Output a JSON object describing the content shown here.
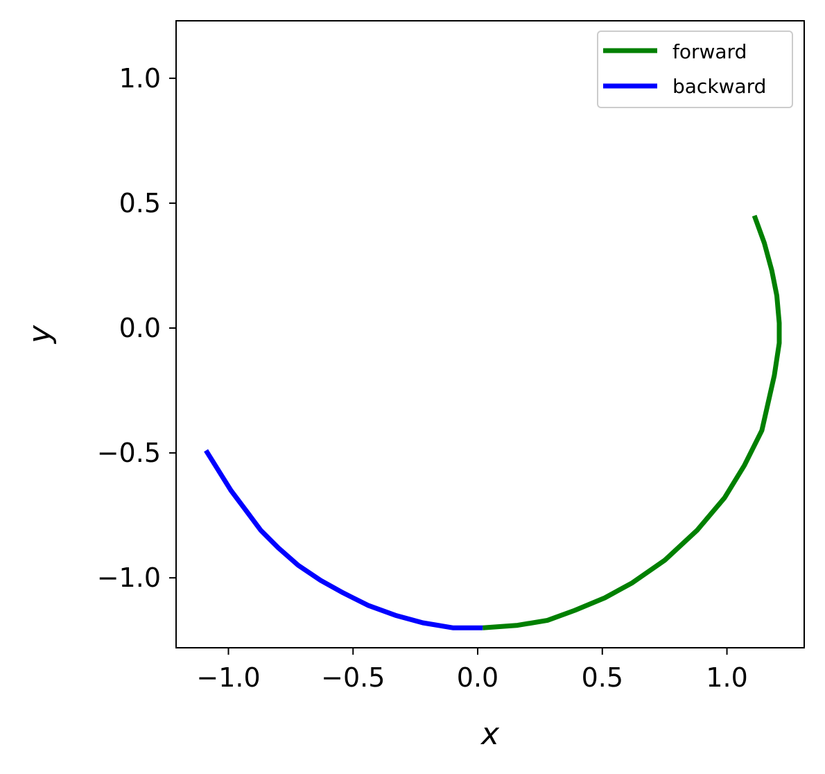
{
  "chart_data": {
    "type": "line",
    "title": "",
    "xlabel": "x",
    "ylabel": "y",
    "xlim": [
      -1.21,
      1.31
    ],
    "ylim": [
      -1.28,
      1.23
    ],
    "xticks": [
      -1.0,
      -0.5,
      0.0,
      0.5,
      1.0
    ],
    "xtick_labels": [
      "−1.0",
      "−0.5",
      "0.0",
      "0.5",
      "1.0"
    ],
    "yticks": [
      1.0,
      0.5,
      0.0,
      -0.5,
      -1.0
    ],
    "ytick_labels": [
      "1.0",
      "0.5",
      "0.0",
      "−0.5",
      "−1.0"
    ],
    "grid": false,
    "legend_position": "top-right",
    "series": [
      {
        "name": "forward",
        "color": "#008000",
        "x": [
          0.02,
          0.16,
          0.28,
          0.39,
          0.51,
          0.62,
          0.75,
          0.88,
          0.99,
          1.07,
          1.14,
          1.19,
          1.21,
          1.21,
          1.2,
          1.18,
          1.15,
          1.11
        ],
        "y": [
          -1.2,
          -1.19,
          -1.17,
          -1.13,
          -1.08,
          -1.02,
          -0.93,
          -0.81,
          -0.68,
          -0.55,
          -0.41,
          -0.19,
          -0.06,
          0.02,
          0.13,
          0.23,
          0.34,
          0.45
        ]
      },
      {
        "name": "backward",
        "color": "#0000ff",
        "x": [
          0.02,
          -0.1,
          -0.22,
          -0.33,
          -0.44,
          -0.54,
          -0.63,
          -0.72,
          -0.8,
          -0.87,
          -0.93,
          -0.99,
          -1.04,
          -1.09
        ],
        "y": [
          -1.2,
          -1.2,
          -1.18,
          -1.15,
          -1.11,
          -1.06,
          -1.01,
          -0.95,
          -0.88,
          -0.81,
          -0.73,
          -0.65,
          -0.57,
          -0.49
        ]
      }
    ]
  }
}
